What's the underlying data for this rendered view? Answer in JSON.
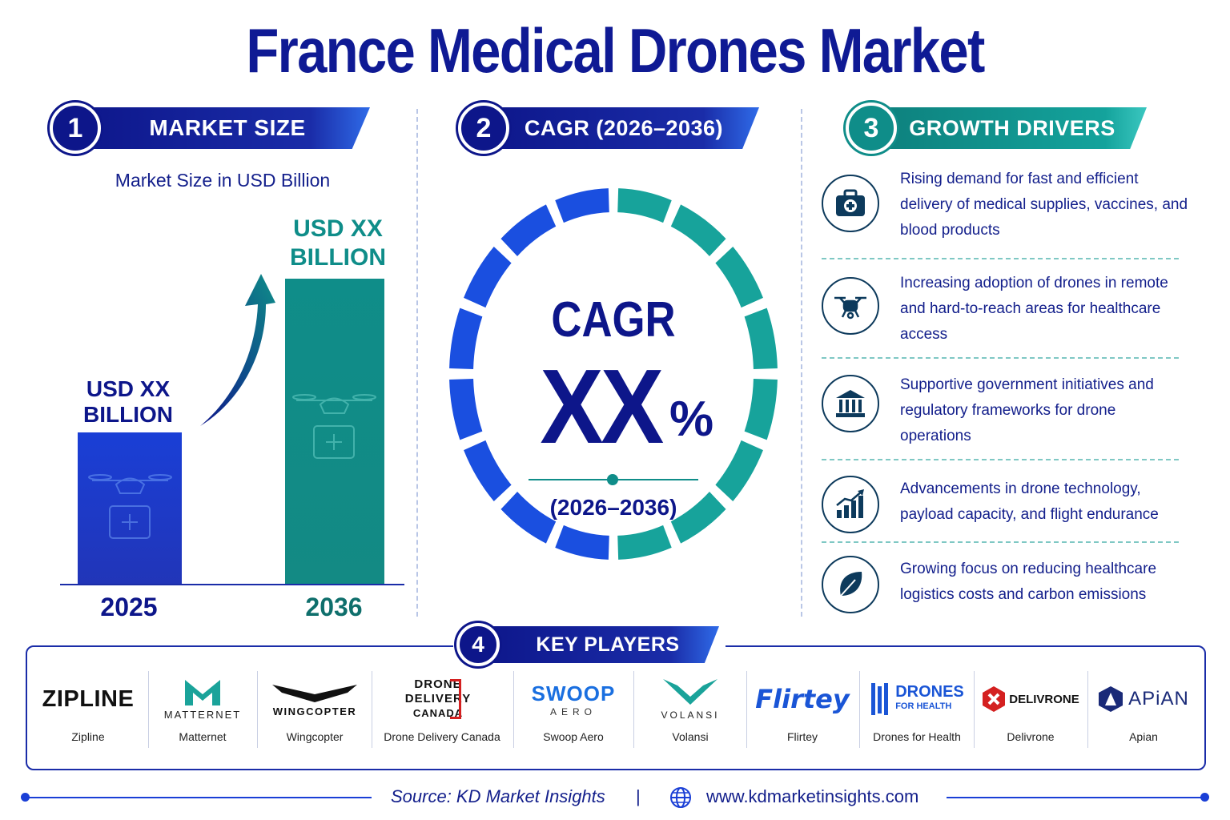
{
  "title": "France Medical Drones Market",
  "sections": {
    "market_size": {
      "number": "1",
      "label": "MARKET SIZE",
      "subtitle": "Market Size in USD Billion"
    },
    "cagr": {
      "number": "2",
      "label": "CAGR (2026–2036)"
    },
    "growth_drivers": {
      "number": "3",
      "label": "GROWTH DRIVERS"
    },
    "key_players": {
      "number": "4",
      "label": "KEY PLAYERS"
    }
  },
  "chart_data": {
    "type": "bar",
    "categories": [
      "2025",
      "2036"
    ],
    "values_label": [
      "USD XX BILLION",
      "USD XX BILLION"
    ],
    "ylabel": "Market Size in USD Billion",
    "colors": [
      "#1a3fd6",
      "#0f8d89"
    ]
  },
  "bar_labels": {
    "left_line1": "USD XX",
    "left_line2": "BILLION",
    "right_line1": "USD XX",
    "right_line2": "BILLION"
  },
  "cagr_ring": {
    "label": "CAGR",
    "value": "XX",
    "unit": "%",
    "period": "(2026–2036)"
  },
  "drivers": [
    {
      "icon": "medical-kit-icon",
      "text": "Rising demand for fast and efficient delivery of medical supplies, vaccines, and blood products"
    },
    {
      "icon": "drone-icon",
      "text": "Increasing adoption of drones in remote and hard-to-reach areas for healthcare access"
    },
    {
      "icon": "government-building-icon",
      "text": "Supportive government initiatives and regulatory frameworks for drone operations"
    },
    {
      "icon": "growth-chart-icon",
      "text": "Advancements in drone technology, payload capacity, and flight endurance"
    },
    {
      "icon": "leaf-icon",
      "text": "Growing focus on reducing healthcare logistics costs and carbon emissions"
    }
  ],
  "players": [
    {
      "logo": "ZIPLINE",
      "name": "Zipline"
    },
    {
      "logo": "MATTERNET",
      "name": "Matternet"
    },
    {
      "logo": "WINGCOPTER",
      "name": "Wingcopter"
    },
    {
      "logo_lines": [
        "DRONE",
        "DELIVERY",
        "CANADA"
      ],
      "name": "Drone Delivery Canada"
    },
    {
      "logo": "SWOOP",
      "logo_sub": "AERO",
      "name": "Swoop Aero"
    },
    {
      "logo": "VOLANSI",
      "name": "Volansi"
    },
    {
      "logo": "Flirtey",
      "name": "Flirtey"
    },
    {
      "logo_lines": [
        "DRONES",
        "FOR HEALTH"
      ],
      "name": "Drones for Health"
    },
    {
      "logo": "DELIVRONE",
      "name": "Delivrone"
    },
    {
      "logo": "APiAN",
      "name": "Apian"
    }
  ],
  "footer": {
    "source": "Source: KD Market Insights",
    "divider": "|",
    "website": "www.kdmarketinsights.com"
  }
}
